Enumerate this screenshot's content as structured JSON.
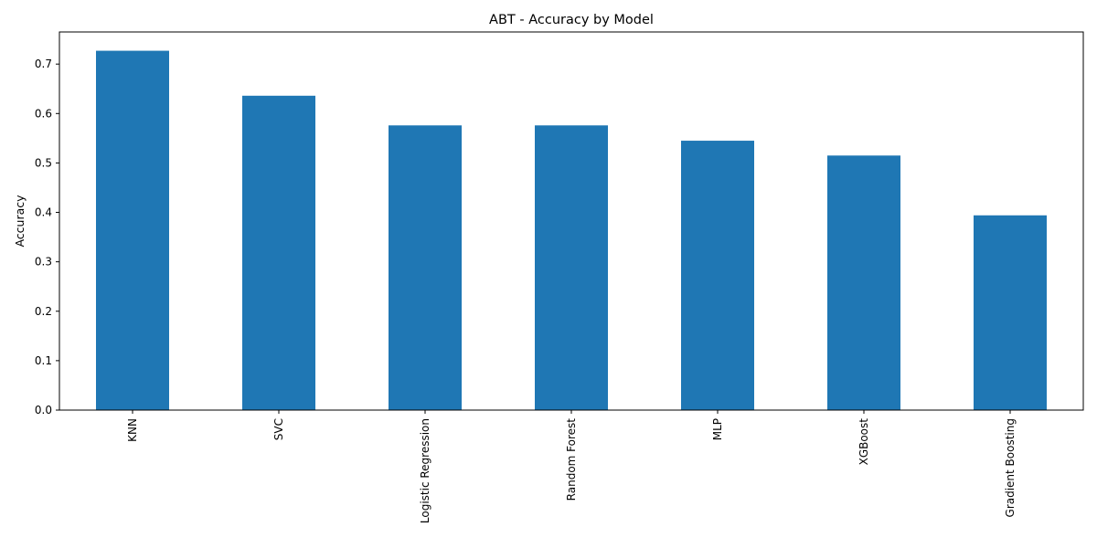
{
  "chart_data": {
    "type": "bar",
    "title": "ABT - Accuracy by Model",
    "xlabel": "",
    "ylabel": "Accuracy",
    "categories": [
      "KNN",
      "SVC",
      "Logistic Regression",
      "Random Forest",
      "MLP",
      "XGBoost",
      "Gradient Boosting"
    ],
    "values": [
      0.727,
      0.636,
      0.576,
      0.576,
      0.545,
      0.515,
      0.394
    ],
    "ylim": [
      0,
      0.765
    ],
    "yticks": [
      0.0,
      0.1,
      0.2,
      0.3,
      0.4,
      0.5,
      0.6,
      0.7
    ],
    "ytick_labels": [
      "0.0",
      "0.1",
      "0.2",
      "0.3",
      "0.4",
      "0.5",
      "0.6",
      "0.7"
    ],
    "bar_color": "#1f77b4",
    "grid": false,
    "legend": "none"
  }
}
